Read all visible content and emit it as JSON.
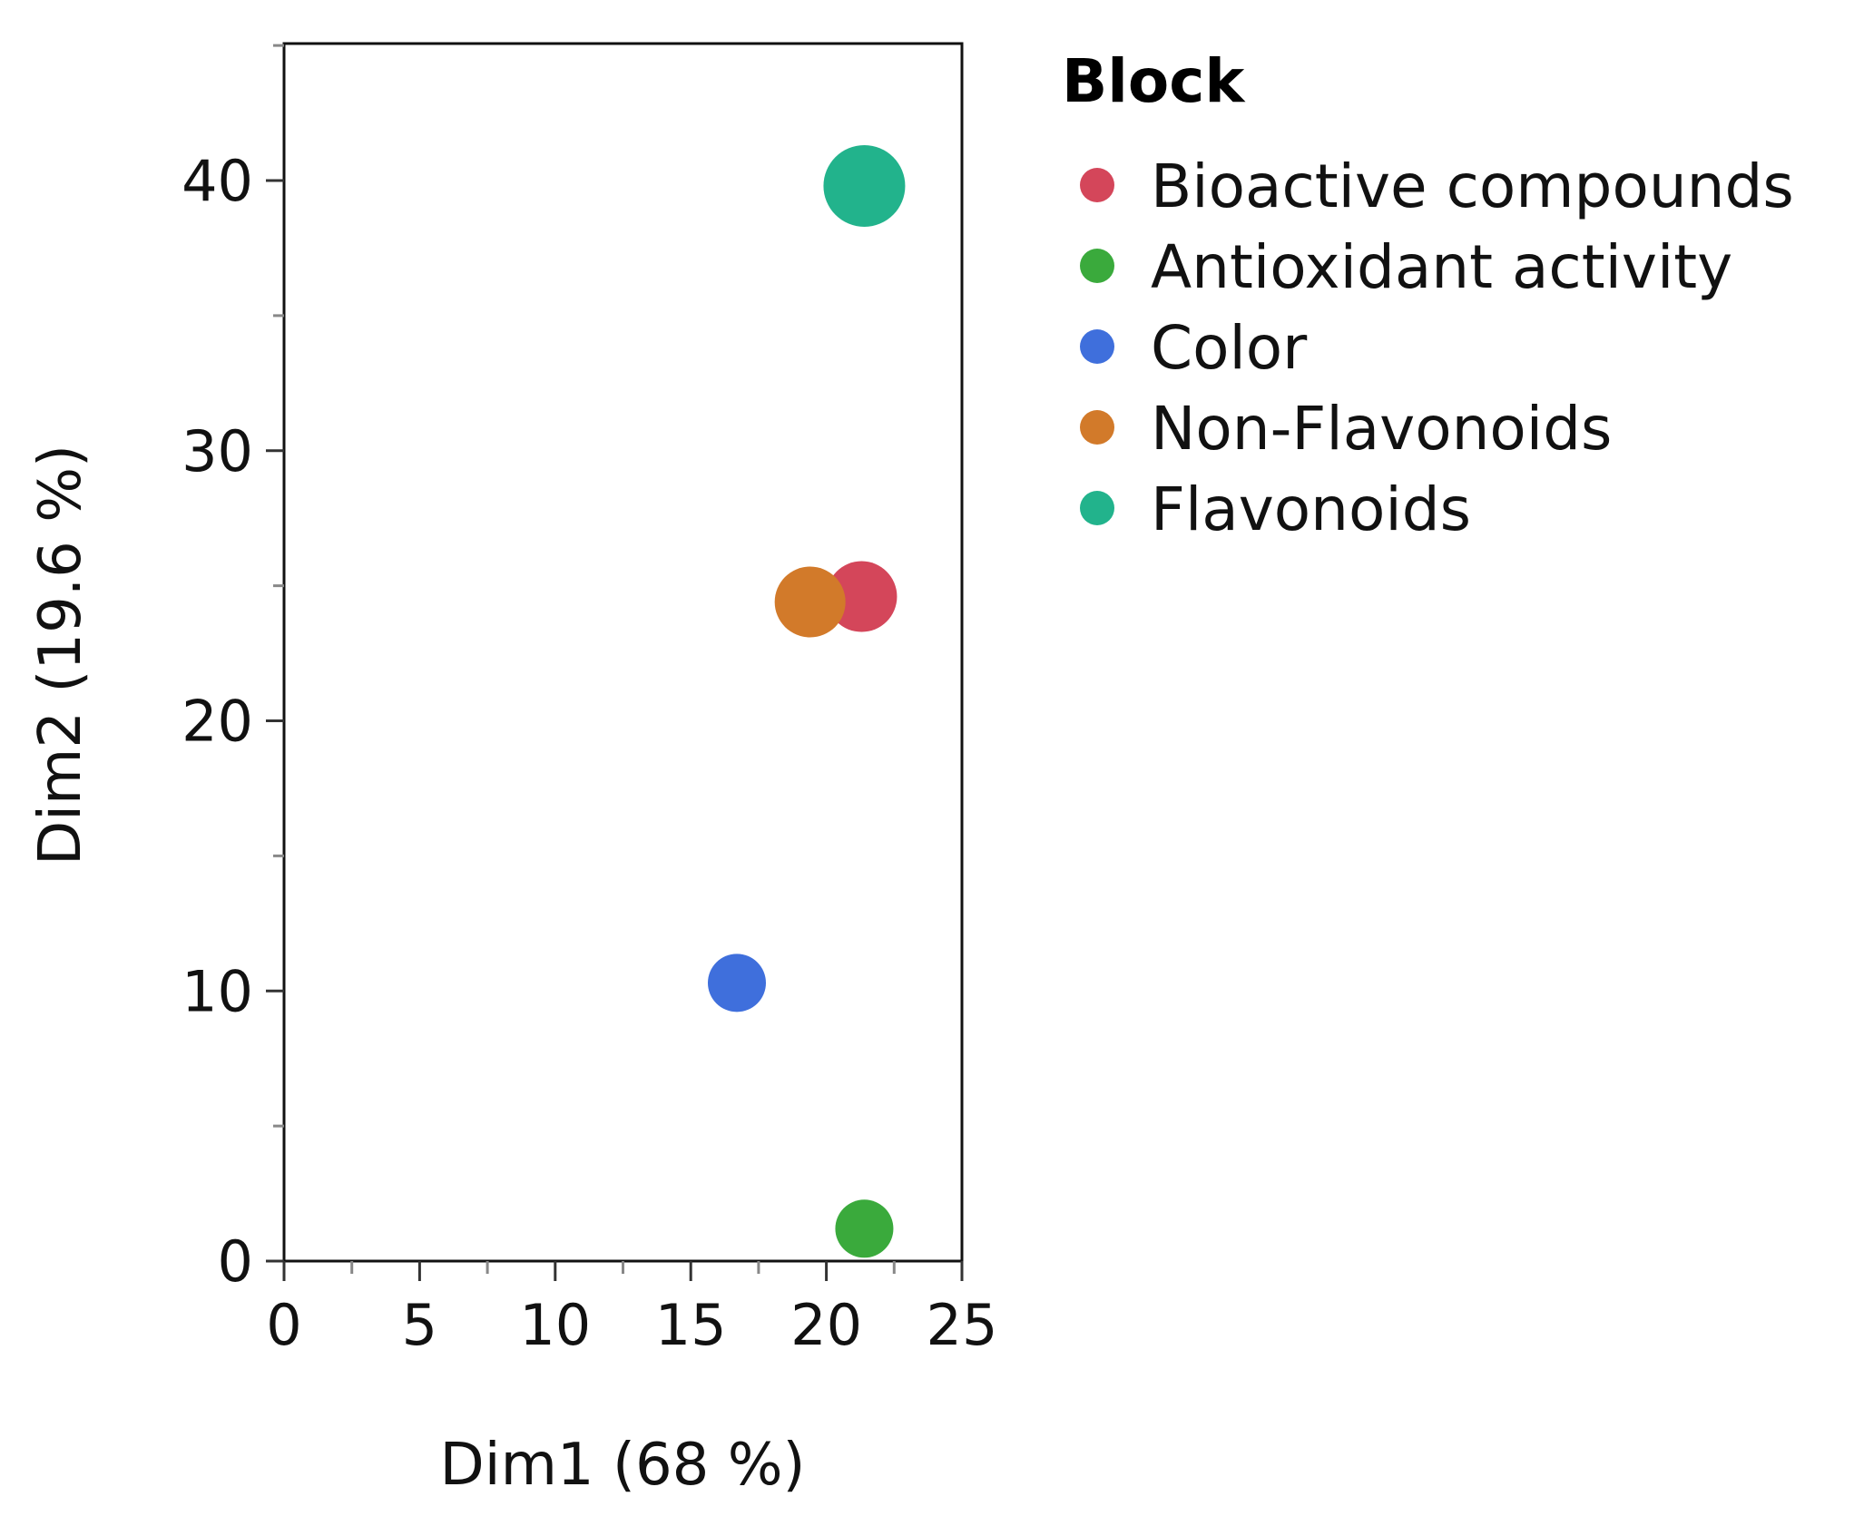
{
  "chart_data": {
    "type": "scatter",
    "xlabel": "Dim1  (68 %)",
    "ylabel": "Dim2  (19.6 %)",
    "xlim": [
      0,
      25
    ],
    "ylim": [
      0,
      45
    ],
    "xticks": [
      "0",
      "5",
      "10",
      "15",
      "20",
      "25"
    ],
    "yticks": [
      "0",
      "10",
      "20",
      "30",
      "40"
    ],
    "grid": false,
    "legend": {
      "title": "Block",
      "placement": "right",
      "entries": [
        {
          "name": "Bioactive compounds",
          "color": "#d4465a"
        },
        {
          "name": "Antioxidant activity",
          "color": "#3aaa3c"
        },
        {
          "name": "Color",
          "color": "#3f6fdc"
        },
        {
          "name": "Non-Flavonoids",
          "color": "#d27a2a"
        },
        {
          "name": "Flavonoids",
          "color": "#22b38c"
        }
      ]
    },
    "points": [
      {
        "series": "Bioactive compounds",
        "x": 21.3,
        "y": 24.6,
        "size": "large",
        "color": "#d4465a"
      },
      {
        "series": "Antioxidant activity",
        "x": 21.4,
        "y": 1.2,
        "size": "medium",
        "color": "#3aaa3c"
      },
      {
        "series": "Color",
        "x": 16.7,
        "y": 10.3,
        "size": "medium",
        "color": "#3f6fdc"
      },
      {
        "series": "Non-Flavonoids",
        "x": 19.4,
        "y": 24.4,
        "size": "large",
        "color": "#d27a2a"
      },
      {
        "series": "Flavonoids",
        "x": 21.4,
        "y": 39.8,
        "size": "xlarge",
        "color": "#22b38c"
      }
    ]
  }
}
